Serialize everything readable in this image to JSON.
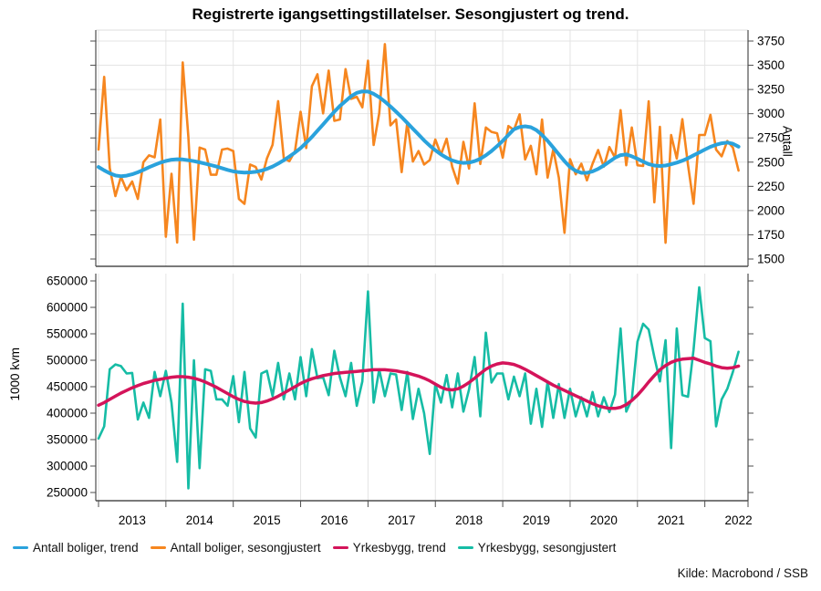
{
  "title": "Registrerte igangsettingstillatelser. Sesongjustert og trend.",
  "source": "Kilde: Macrobond / SSB",
  "colors": {
    "boliger_trend": "#2AA2DC",
    "boliger_sesongjustert": "#F6861F",
    "yrkesbygg_trend": "#D4145A",
    "yrkesbygg_sesongjustert": "#16BCA5",
    "grid": "#E4E4E4",
    "frame": "#4D4D4D"
  },
  "legend": [
    {
      "label": "Antall boliger, trend",
      "color": "#2AA2DC"
    },
    {
      "label": "Antall boliger, sesongjustert",
      "color": "#F6861F"
    },
    {
      "label": "Yrkesbygg, trend",
      "color": "#D4145A"
    },
    {
      "label": "Yrkesbygg, sesongjustert",
      "color": "#16BCA5"
    }
  ],
  "x_axis": {
    "years": [
      "2013",
      "2014",
      "2015",
      "2016",
      "2017",
      "2018",
      "2019",
      "2020",
      "2021",
      "2022"
    ],
    "start": "2013-01",
    "interval": "monthly"
  },
  "chart_data": [
    {
      "panel": "top",
      "type": "line",
      "ylabel": "Antall",
      "ylabel_side": "right",
      "ylim": [
        1425,
        3865
      ],
      "yticks": [
        1500,
        1750,
        2000,
        2250,
        2500,
        2750,
        3000,
        3250,
        3500,
        3750
      ],
      "grid": {
        "horizontal": true,
        "vertical": true
      },
      "series": [
        {
          "name": "Antall boliger, sesongjustert",
          "color": "#F6861F",
          "width": 2.6,
          "values": [
            2630,
            3380,
            2440,
            2150,
            2350,
            2210,
            2300,
            2120,
            2500,
            2570,
            2550,
            2940,
            1730,
            2380,
            1670,
            3530,
            2760,
            1700,
            2650,
            2630,
            2370,
            2370,
            2630,
            2640,
            2615,
            2120,
            2070,
            2475,
            2450,
            2320,
            2537,
            2680,
            3130,
            2540,
            2510,
            2615,
            3020,
            2646,
            3283,
            3407,
            3003,
            3445,
            2926,
            2940,
            3460,
            3153,
            3175,
            3066,
            3548,
            2677,
            3003,
            3718,
            2879,
            2940,
            2397,
            2910,
            2506,
            2615,
            2475,
            2521,
            2733,
            2577,
            2742,
            2453,
            2279,
            2710,
            2434,
            3107,
            2481,
            2858,
            2812,
            2798,
            2546,
            2873,
            2832,
            2994,
            2528,
            2668,
            2375,
            2940,
            2341,
            2630,
            2341,
            1770,
            2531,
            2375,
            2484,
            2312,
            2484,
            2625,
            2453,
            2656,
            2546,
            3036,
            2468,
            2858,
            2468,
            2460,
            3128,
            2086,
            2864,
            1668,
            2780,
            2537,
            2943,
            2472,
            2070,
            2780,
            2780,
            2988,
            2630,
            2560,
            2718,
            2650,
            2413
          ]
        },
        {
          "name": "Antall boliger, trend",
          "color": "#2AA2DC",
          "width": 4,
          "values": [
            2450,
            2415,
            2385,
            2362,
            2355,
            2360,
            2375,
            2395,
            2420,
            2448,
            2472,
            2495,
            2512,
            2525,
            2530,
            2528,
            2520,
            2510,
            2498,
            2485,
            2470,
            2455,
            2438,
            2420,
            2405,
            2396,
            2392,
            2394,
            2400,
            2412,
            2430,
            2455,
            2485,
            2520,
            2558,
            2600,
            2645,
            2700,
            2760,
            2825,
            2890,
            2955,
            3020,
            3080,
            3130,
            3180,
            3215,
            3230,
            3228,
            3205,
            3170,
            3125,
            3075,
            3020,
            2965,
            2905,
            2845,
            2785,
            2725,
            2670,
            2622,
            2580,
            2545,
            2518,
            2500,
            2492,
            2495,
            2510,
            2535,
            2570,
            2615,
            2665,
            2720,
            2780,
            2840,
            2862,
            2870,
            2860,
            2830,
            2780,
            2720,
            2650,
            2580,
            2510,
            2450,
            2410,
            2390,
            2390,
            2405,
            2430,
            2465,
            2505,
            2545,
            2572,
            2580,
            2560,
            2535,
            2505,
            2480,
            2465,
            2460,
            2465,
            2478,
            2495,
            2515,
            2540,
            2570,
            2600,
            2630,
            2658,
            2680,
            2695,
            2702,
            2690,
            2660
          ]
        }
      ]
    },
    {
      "panel": "bottom",
      "type": "line",
      "ylabel": "1000 kvm",
      "ylabel_side": "left",
      "ylim": [
        234000,
        664000
      ],
      "yticks": [
        250000,
        300000,
        350000,
        400000,
        450000,
        500000,
        550000,
        600000,
        650000
      ],
      "grid": {
        "horizontal": false,
        "vertical": true
      },
      "series": [
        {
          "name": "Yrkesbygg, sesongjustert",
          "color": "#16BCA5",
          "width": 2.6,
          "values": [
            352000,
            375000,
            483000,
            492000,
            489000,
            475000,
            476000,
            388000,
            420000,
            391000,
            478000,
            432000,
            480000,
            420000,
            308000,
            607000,
            258000,
            500000,
            296000,
            483000,
            480000,
            426000,
            426000,
            414000,
            470000,
            383000,
            478000,
            371000,
            354000,
            475000,
            480000,
            432000,
            495000,
            426000,
            475000,
            426000,
            506000,
            432000,
            521000,
            466000,
            468000,
            434000,
            518000,
            468000,
            432000,
            495000,
            414000,
            460000,
            630000,
            420000,
            483000,
            432000,
            475000,
            473000,
            406000,
            478000,
            389000,
            446000,
            400000,
            323000,
            455000,
            420000,
            472000,
            411000,
            475000,
            403000,
            445000,
            506000,
            394000,
            552000,
            458000,
            475000,
            475000,
            426000,
            469000,
            432000,
            475000,
            380000,
            446000,
            374000,
            460000,
            391000,
            455000,
            391000,
            446000,
            394000,
            430000,
            394000,
            440000,
            394000,
            430000,
            402000,
            435000,
            560000,
            403000,
            426000,
            535000,
            569000,
            558000,
            506000,
            460000,
            538000,
            334000,
            560000,
            434000,
            431000,
            520000,
            638000,
            542000,
            536000,
            375000,
            426000,
            446000,
            478000,
            516000
          ]
        },
        {
          "name": "Yrkesbygg, trend",
          "color": "#D4145A",
          "width": 3.5,
          "values": [
            415000,
            420000,
            426000,
            432000,
            438000,
            443000,
            448000,
            452000,
            456000,
            459000,
            462000,
            464000,
            466000,
            468000,
            469000,
            469000,
            468000,
            466000,
            463000,
            459000,
            454000,
            449000,
            443000,
            437000,
            431000,
            426000,
            422000,
            420000,
            419000,
            420000,
            423000,
            427000,
            432000,
            438000,
            444000,
            450000,
            456000,
            461000,
            465000,
            468000,
            471000,
            473000,
            475000,
            476000,
            477000,
            478000,
            479000,
            480000,
            481000,
            482000,
            482000,
            482000,
            481000,
            480000,
            478000,
            476000,
            473000,
            470000,
            466000,
            461000,
            455000,
            449000,
            445000,
            444000,
            446000,
            451000,
            458000,
            466000,
            475000,
            483000,
            489000,
            493000,
            495000,
            494000,
            492000,
            488000,
            483000,
            477000,
            471000,
            465000,
            459000,
            453000,
            448000,
            443000,
            438000,
            433000,
            428000,
            423000,
            418000,
            414000,
            411000,
            409000,
            409000,
            411000,
            416000,
            424000,
            434000,
            446000,
            459000,
            471000,
            482000,
            490000,
            496000,
            500000,
            502000,
            503000,
            504000,
            500000,
            496000,
            493000,
            489000,
            486000,
            485000,
            486000,
            489000
          ]
        }
      ]
    }
  ]
}
